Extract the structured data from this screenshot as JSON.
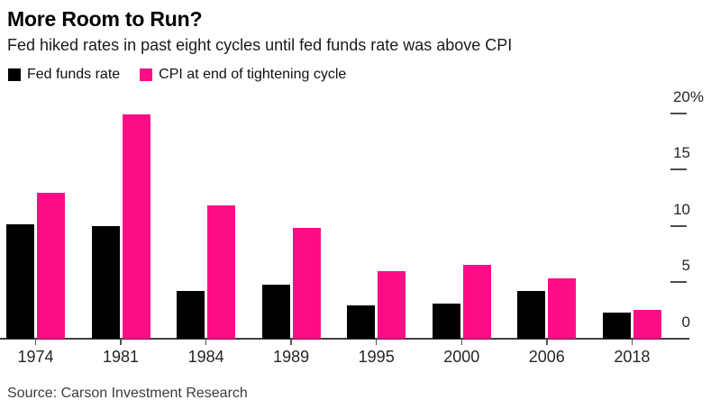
{
  "header": {
    "title": "More Room to Run?",
    "subtitle": "Fed hiked rates in past eight cycles until fed funds rate was above CPI"
  },
  "legend": [
    {
      "label": "Fed funds rate",
      "color": "#000000"
    },
    {
      "label": "CPI at end of tightening cycle",
      "color": "#ff0d87"
    }
  ],
  "chart_data": {
    "type": "bar",
    "title": "More Room to Run?",
    "subtitle": "Fed hiked rates in past eight cycles until fed funds rate was above CPI",
    "categories": [
      "1974",
      "1981",
      "1984",
      "1989",
      "1995",
      "2000",
      "2006",
      "2018"
    ],
    "series": [
      {
        "name": "Fed funds rate",
        "color": "#000000",
        "values": [
          10.1,
          10.0,
          4.2,
          4.8,
          2.9,
          3.1,
          4.2,
          2.3
        ]
      },
      {
        "name": "CPI at end of tightening cycle",
        "color": "#ff0d87",
        "values": [
          12.9,
          19.9,
          11.8,
          9.8,
          6.0,
          6.5,
          5.3,
          2.5
        ]
      }
    ],
    "xlabel": "",
    "ylabel": "",
    "ylim": [
      0,
      22
    ],
    "grid": false,
    "legend_position": "top-left",
    "y_axis": {
      "side": "right",
      "ticks": [
        {
          "value": 20,
          "label": "20%"
        },
        {
          "value": 15,
          "label": "15"
        },
        {
          "value": 10,
          "label": "10"
        },
        {
          "value": 5,
          "label": "5"
        },
        {
          "value": 0,
          "label": "0"
        }
      ]
    }
  },
  "source": "Source: Carson Investment Research"
}
